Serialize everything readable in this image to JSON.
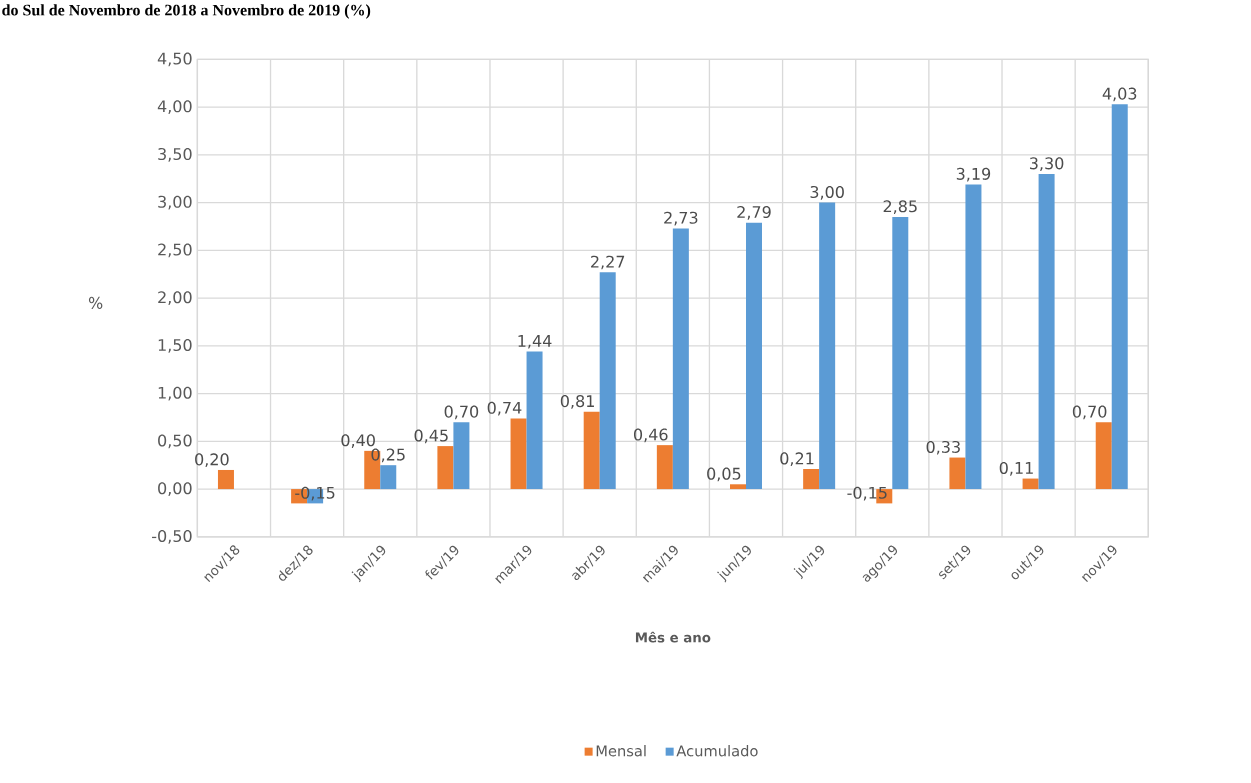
{
  "chart_data": {
    "type": "bar",
    "title": "do Sul de Novembro de 2018 a Novembro de 2019 (%)",
    "xlabel": "Mês e ano",
    "ylabel": "%",
    "categories": [
      "nov/18",
      "dez/18",
      "jan/19",
      "fev/19",
      "mar/19",
      "abr/19",
      "mai/19",
      "jun/19",
      "jul/19",
      "ago/19",
      "set/19",
      "out/19",
      "nov/19"
    ],
    "series": [
      {
        "name": "Mensal",
        "color": "#ed7d31",
        "values": [
          0.2,
          -0.15,
          0.4,
          0.45,
          0.74,
          0.81,
          0.46,
          0.05,
          0.21,
          -0.15,
          0.33,
          0.11,
          0.7
        ],
        "value_labels": [
          "0,20",
          null,
          "0,40",
          "0,45",
          "0,74",
          "0,81",
          "0,46",
          "0,05",
          "0,21",
          "-0,15",
          "0,33",
          "0,11",
          "0,70"
        ]
      },
      {
        "name": "Acumulado",
        "color": "#5b9bd5",
        "values": [
          null,
          -0.15,
          0.25,
          0.7,
          1.44,
          2.27,
          2.73,
          2.79,
          3.0,
          2.85,
          3.19,
          3.3,
          4.03
        ],
        "value_labels": [
          null,
          "-0,15",
          "0,25",
          "0,70",
          "1,44",
          "2,27",
          "2,73",
          "2,79",
          "3,00",
          "2,85",
          "3,19",
          "3,30",
          "4,03"
        ]
      }
    ],
    "ylim": [
      -0.5,
      4.5
    ],
    "yticks": [
      {
        "value": -0.5,
        "label": "-0,50"
      },
      {
        "value": 0,
        "label": "0,00"
      },
      {
        "value": 0.5,
        "label": "0,50"
      },
      {
        "value": 1,
        "label": "1,00"
      },
      {
        "value": 1.5,
        "label": "1,50"
      },
      {
        "value": 2,
        "label": "2,00"
      },
      {
        "value": 2.5,
        "label": "2,50"
      },
      {
        "value": 3,
        "label": "3,00"
      },
      {
        "value": 3.5,
        "label": "3,50"
      },
      {
        "value": 4,
        "label": "4,00"
      },
      {
        "value": 4.5,
        "label": "4,50"
      }
    ],
    "grid": true,
    "legend": "bottom"
  }
}
